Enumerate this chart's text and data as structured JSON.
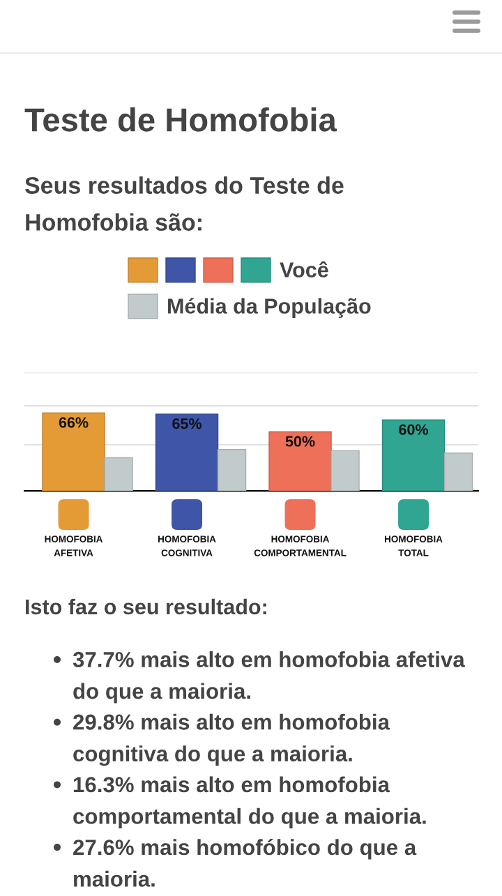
{
  "chart_data": {
    "type": "bar",
    "title": "Teste de Homofobia",
    "subtitle": "Seus resultados do Teste de\nHomofobia são:",
    "categories": [
      "HOMOFOBIA\nAFETIVA",
      "HOMOFOBIA\nCOGNITIVA",
      "HOMOFOBIA\nCOMPORTAMENTAL",
      "HOMOFOBIA\nTOTAL"
    ],
    "series": [
      {
        "name": "Você",
        "colors": [
          "#e49a35",
          "#3e55a8",
          "#ee7058",
          "#30a592"
        ],
        "values": [
          66,
          65,
          50,
          60
        ],
        "value_labels": [
          "66%",
          "65%",
          "50%",
          "60%"
        ]
      },
      {
        "name": "Média da População",
        "color": "#c2cbcb",
        "values": [
          28,
          35,
          34,
          32
        ]
      }
    ],
    "ylim": [
      0,
      100
    ],
    "yticks": [
      {
        "value": 39,
        "label": null
      },
      {
        "value": 72,
        "label": null
      },
      {
        "value": 100,
        "label": null
      }
    ],
    "grid": "y",
    "tick_labels": "x",
    "legend": "top",
    "annotations": [
      "Isto faz o seu resultado:",
      "37.7% mais alto em homofobia afetiva\ndo que a maioria.",
      "29.8% mais alto em homofobia\ncognitiva do que a maioria.",
      "16.3% mais alto em homofobia\ncomportamental do que a maioria.",
      "27.6% mais homofóbico do que a\nmaioria."
    ]
  }
}
